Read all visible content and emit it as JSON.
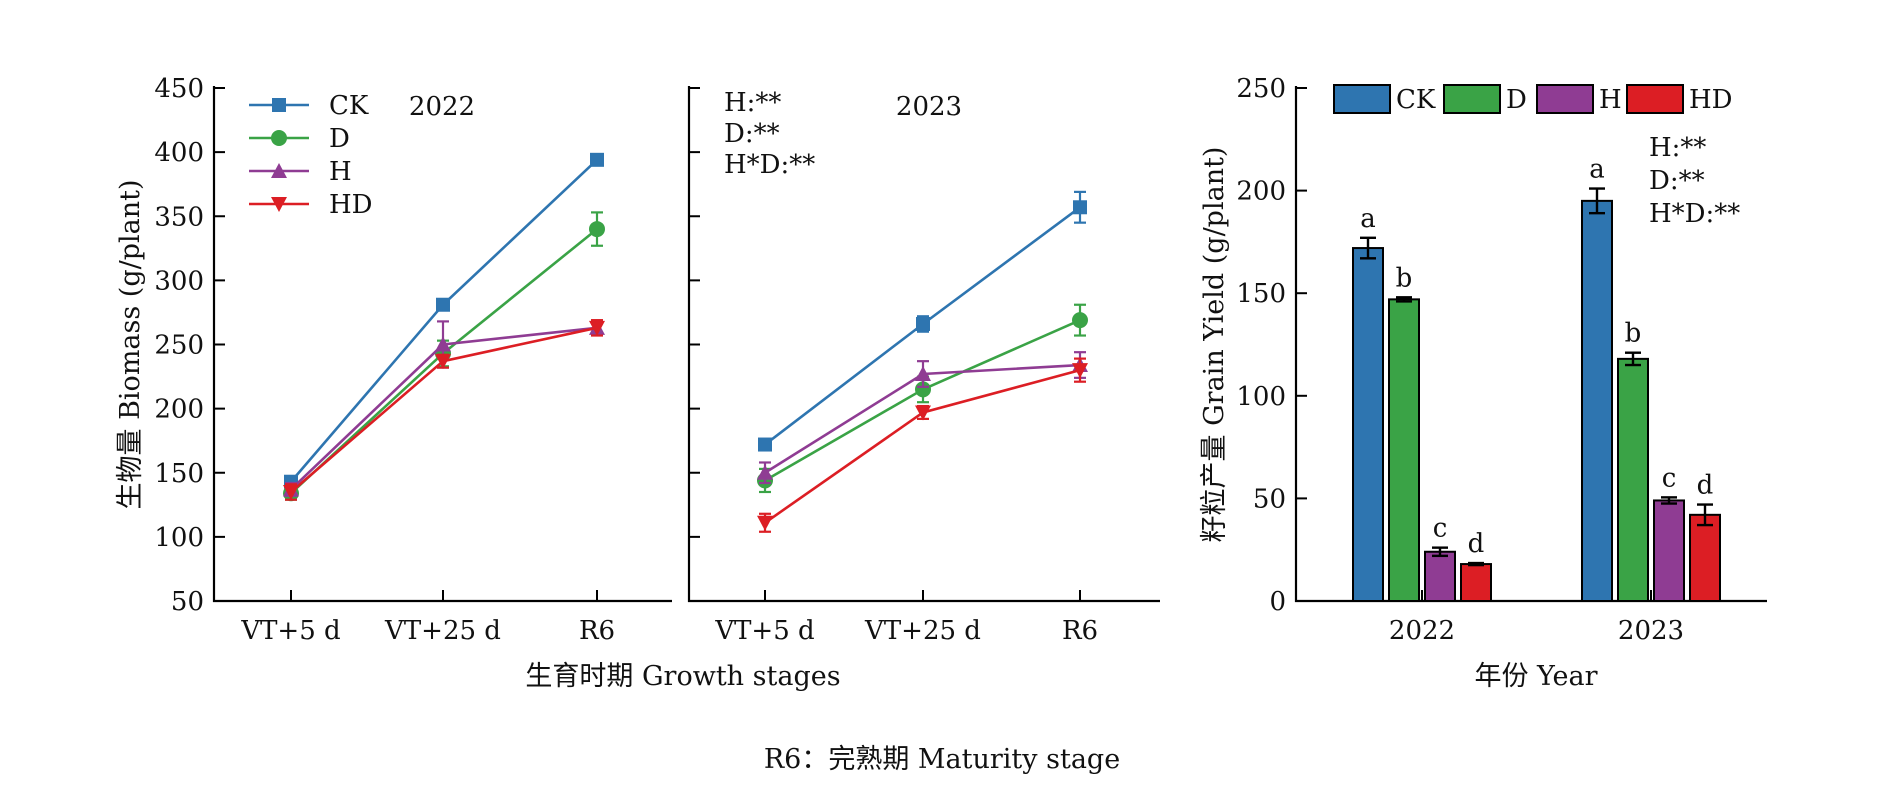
{
  "colors": {
    "CK": "#2e75b0",
    "D": "#3aa346",
    "H": "#8f3c93",
    "HD": "#dc1e24"
  },
  "chart_data": [
    {
      "type": "line",
      "panel": "biomass-2022",
      "title": "2022",
      "ylabel": "生物量 Biomass (g/plant)",
      "ylim": [
        50,
        450
      ],
      "yticks": [
        "50",
        "100",
        "150",
        "200",
        "250",
        "300",
        "350",
        "400",
        "450"
      ],
      "categories": [
        "VT+5 d",
        "VT+25 d",
        "R6"
      ],
      "legend_position": "top-left",
      "series": [
        {
          "name": "CK",
          "marker": "square",
          "values": [
            143,
            281,
            394
          ],
          "errors": [
            4,
            3,
            4
          ]
        },
        {
          "name": "D",
          "marker": "circle",
          "values": [
            134,
            243,
            340
          ],
          "errors": [
            5,
            10,
            13
          ]
        },
        {
          "name": "H",
          "marker": "triangle-up",
          "values": [
            137,
            250,
            263
          ],
          "errors": [
            5,
            18,
            5
          ]
        },
        {
          "name": "HD",
          "marker": "triangle-down",
          "values": [
            135,
            237,
            263
          ],
          "errors": [
            6,
            5,
            6
          ]
        }
      ]
    },
    {
      "type": "line",
      "panel": "biomass-2023",
      "title": "2023",
      "ylim": [
        50,
        450
      ],
      "categories": [
        "VT+5 d",
        "VT+25 d",
        "R6"
      ],
      "annotations": [
        "H:**",
        "D:**",
        "H*D:**"
      ],
      "series": [
        {
          "name": "CK",
          "marker": "square",
          "values": [
            172,
            266,
            357
          ],
          "errors": [
            3,
            6,
            12
          ]
        },
        {
          "name": "D",
          "marker": "circle",
          "values": [
            144,
            215,
            269
          ],
          "errors": [
            9,
            10,
            12
          ]
        },
        {
          "name": "H",
          "marker": "triangle-up",
          "values": [
            150,
            227,
            234
          ],
          "errors": [
            8,
            10,
            10
          ]
        },
        {
          "name": "HD",
          "marker": "triangle-down",
          "values": [
            111,
            197,
            230
          ],
          "errors": [
            7,
            5,
            9
          ]
        }
      ]
    },
    {
      "type": "bar",
      "panel": "grain-yield",
      "xlabel": "年份 Year",
      "ylabel": "籽粒产量 Grain Yield (g/plant)",
      "ylim": [
        0,
        250
      ],
      "yticks": [
        "0",
        "50",
        "100",
        "150",
        "200",
        "250"
      ],
      "categories": [
        "2022",
        "2023"
      ],
      "legend_position": "top",
      "annotations": [
        "H:**",
        "D:**",
        "H*D:**"
      ],
      "series": [
        {
          "name": "CK",
          "values": [
            172,
            195
          ],
          "errors": [
            5,
            6
          ],
          "letters": [
            "a",
            "a"
          ]
        },
        {
          "name": "D",
          "values": [
            147,
            118
          ],
          "errors": [
            1,
            3
          ],
          "letters": [
            "b",
            "b"
          ]
        },
        {
          "name": "H",
          "values": [
            24,
            49
          ],
          "errors": [
            2,
            1.5
          ],
          "letters": [
            "c",
            "c"
          ]
        },
        {
          "name": "HD",
          "values": [
            18,
            42
          ],
          "errors": [
            0.5,
            5
          ],
          "letters": [
            "d",
            "d"
          ]
        }
      ]
    }
  ],
  "shared_xlabel": "生育时期 Growth stages",
  "footnote": "R6：完熟期  Maturity stage"
}
